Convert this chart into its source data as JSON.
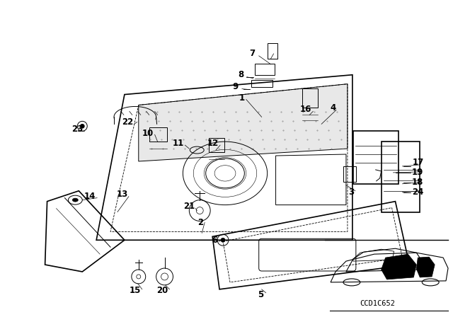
{
  "background_color": "#ffffff",
  "fig_width": 6.4,
  "fig_height": 4.48,
  "dpi": 100,
  "code_text": "CCD1C652"
}
